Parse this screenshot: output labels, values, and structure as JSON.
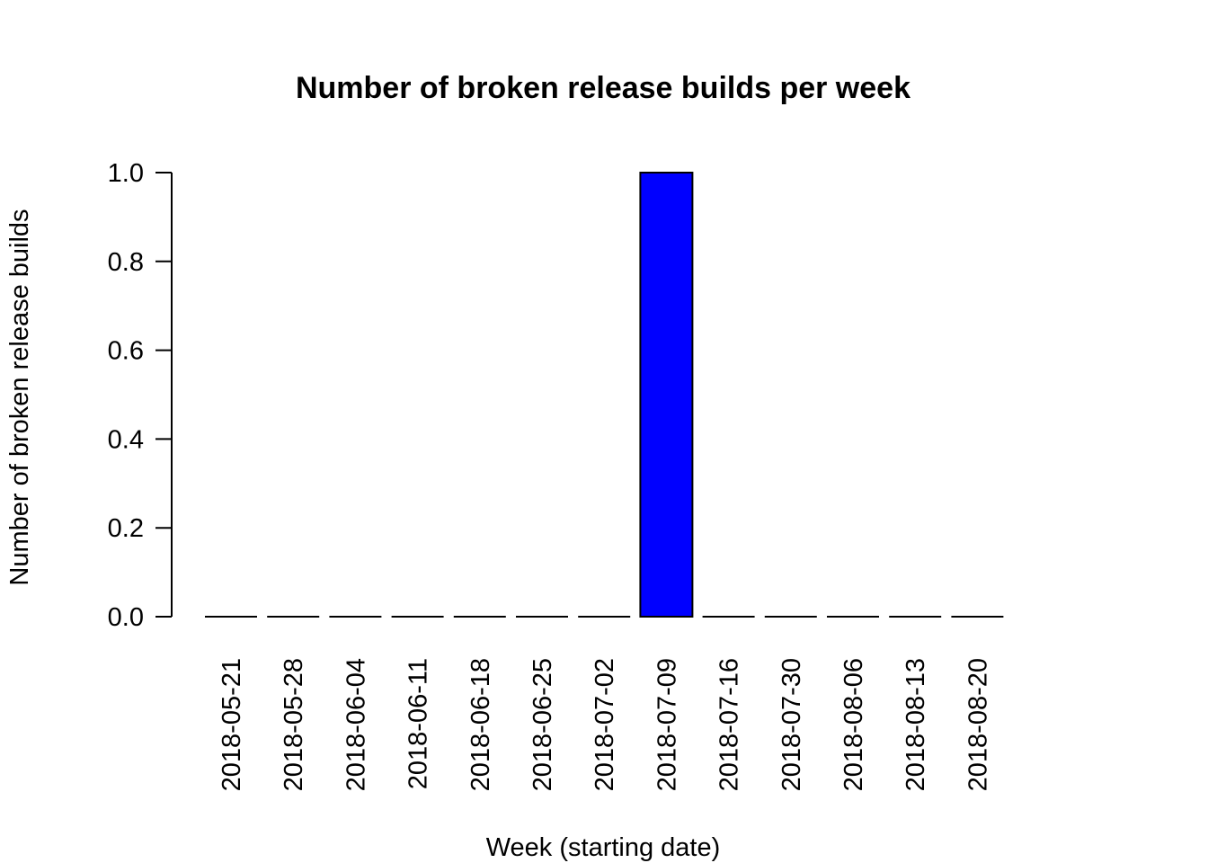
{
  "chart_data": {
    "type": "bar",
    "title": "Number of broken release builds per week",
    "xlabel": "Week (starting date)",
    "ylabel": "Number of broken release builds",
    "categories": [
      "2018-05-21",
      "2018-05-28",
      "2018-06-04",
      "2018-06-11",
      "2018-06-18",
      "2018-06-25",
      "2018-07-02",
      "2018-07-09",
      "2018-07-16",
      "2018-07-30",
      "2018-08-06",
      "2018-08-13",
      "2018-08-20"
    ],
    "values": [
      0,
      0,
      0,
      0,
      0,
      0,
      0,
      1,
      0,
      0,
      0,
      0,
      0
    ],
    "ylim": [
      0,
      1
    ],
    "yticks": [
      "0.0",
      "0.2",
      "0.4",
      "0.6",
      "0.8",
      "1.0"
    ],
    "bar_color": "#0000ff",
    "grid": false,
    "legend": "none"
  }
}
